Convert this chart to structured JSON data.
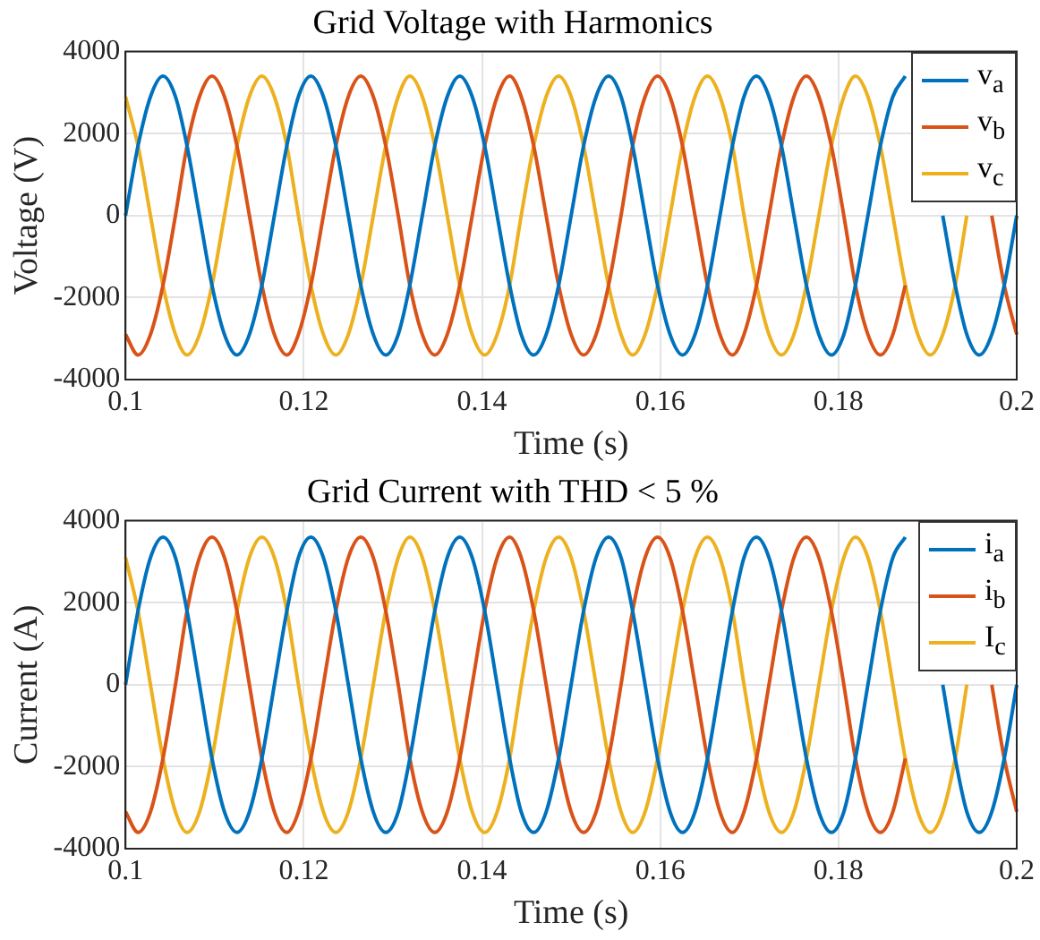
{
  "chart_data": [
    {
      "type": "line",
      "title": "Grid Voltage with Harmonics",
      "xlabel": "Time (s)",
      "ylabel": "Voltage (V)",
      "xlim": [
        0.1,
        0.2
      ],
      "xticks": [
        0.1,
        0.12,
        0.14,
        0.16,
        0.18,
        0.2
      ],
      "ylim": [
        -4000,
        4000
      ],
      "yticks": [
        -4000,
        -2000,
        0,
        2000,
        4000
      ],
      "grid": true,
      "legend": "top right",
      "marker": "none",
      "x": [
        0.1,
        0.1014,
        0.1028,
        0.1042,
        0.1056,
        0.1069,
        0.1083,
        0.1097,
        0.1111,
        0.1125,
        0.1139,
        0.1153,
        0.1167,
        0.1181,
        0.1194,
        0.1208,
        0.1222,
        0.1236,
        0.125,
        0.1264,
        0.1278,
        0.1292,
        0.1306,
        0.1319,
        0.1333,
        0.1347,
        0.1361,
        0.1375,
        0.1389,
        0.1403,
        0.1417,
        0.1431,
        0.1444,
        0.1458,
        0.1472,
        0.1486,
        0.15,
        0.1514,
        0.1528,
        0.1542,
        0.1556,
        0.1569,
        0.1583,
        0.1597,
        0.1611,
        0.1625,
        0.1639,
        0.1653,
        0.1667,
        0.1681,
        0.1694,
        0.1708,
        0.1722,
        0.1736,
        0.175,
        0.1764,
        0.1778,
        0.1792,
        0.1806,
        0.1819,
        0.1833,
        0.1847,
        0.1861,
        0.1875,
        0.1889,
        0.1903,
        0.1917,
        0.1931,
        0.1944,
        0.1958,
        0.1972,
        0.1986,
        0.2
      ],
      "series": [
        {
          "name": "v$_{a}$",
          "color": "#0072bd",
          "values": [
            0,
            1700,
            2900,
            3400,
            2900,
            1700,
            0,
            -1700,
            -2900,
            -3400,
            -2900,
            -1700,
            0,
            1700,
            2900,
            3400,
            2900,
            1700,
            0,
            -1700,
            -2900,
            -3400,
            -2900,
            -1700,
            0,
            1700,
            2900,
            3400,
            2900,
            1700,
            0,
            -1700,
            -2900,
            -3400,
            -2900,
            -1700,
            0,
            1700,
            2900,
            3400,
            2900,
            1700,
            0,
            -1700,
            -2900,
            -3400,
            -2900,
            -1700,
            0,
            1700,
            2900,
            3400,
            2900,
            1700,
            0,
            -1700,
            -2900,
            -3400,
            -2900,
            -1700,
            0,
            1700,
            2900,
            3400,
            null,
            null,
            0,
            -1700,
            -2900,
            -3400,
            -2900,
            -1700,
            0
          ]
        },
        {
          "name": "v$_{b}$",
          "color": "#d95319",
          "values": [
            -2900,
            -3400,
            -2900,
            -1700,
            0,
            1700,
            2900,
            3400,
            2900,
            1700,
            0,
            -1700,
            -2900,
            -3400,
            -2900,
            -1700,
            0,
            1700,
            2900,
            3400,
            2900,
            1700,
            0,
            -1700,
            -2900,
            -3400,
            -2900,
            -1700,
            0,
            1700,
            2900,
            3400,
            2900,
            1700,
            0,
            -1700,
            -2900,
            -3400,
            -2900,
            -1700,
            0,
            1700,
            2900,
            3400,
            2900,
            1700,
            0,
            -1700,
            -2900,
            -3400,
            -2900,
            -1700,
            0,
            1700,
            2900,
            3400,
            2900,
            1700,
            0,
            -1700,
            -2900,
            -3400,
            -2900,
            -1700,
            null,
            null,
            null,
            null,
            null,
            null,
            0,
            -1700,
            -2900
          ]
        },
        {
          "name": "v$_{c}$",
          "color": "#edb120",
          "values": [
            2900,
            1700,
            0,
            -1700,
            -2900,
            -3400,
            -2900,
            -1700,
            0,
            1700,
            2900,
            3400,
            2900,
            1700,
            0,
            -1700,
            -2900,
            -3400,
            -2900,
            -1700,
            0,
            1700,
            2900,
            3400,
            2900,
            1700,
            0,
            -1700,
            -2900,
            -3400,
            -2900,
            -1700,
            0,
            1700,
            2900,
            3400,
            2900,
            1700,
            0,
            -1700,
            -2900,
            -3400,
            -2900,
            -1700,
            0,
            1700,
            2900,
            3400,
            2900,
            1700,
            0,
            -1700,
            -2900,
            -3400,
            -2900,
            -1700,
            0,
            1700,
            2900,
            3400,
            2900,
            1700,
            0,
            -1700,
            -2900,
            -3400,
            -2900,
            -1700,
            0,
            null,
            null,
            null,
            null
          ]
        }
      ]
    },
    {
      "type": "line",
      "title": "Grid Current with THD < 5 %",
      "xlabel": "Time (s)",
      "ylabel": "Current (A)",
      "xlim": [
        0.1,
        0.2
      ],
      "xticks": [
        0.1,
        0.12,
        0.14,
        0.16,
        0.18,
        0.2
      ],
      "ylim": [
        -4000,
        4000
      ],
      "yticks": [
        -4000,
        -2000,
        0,
        2000,
        4000
      ],
      "grid": true,
      "legend": "top right",
      "marker": "none",
      "x": [
        0.1,
        0.1014,
        0.1028,
        0.1042,
        0.1056,
        0.1069,
        0.1083,
        0.1097,
        0.1111,
        0.1125,
        0.1139,
        0.1153,
        0.1167,
        0.1181,
        0.1194,
        0.1208,
        0.1222,
        0.1236,
        0.125,
        0.1264,
        0.1278,
        0.1292,
        0.1306,
        0.1319,
        0.1333,
        0.1347,
        0.1361,
        0.1375,
        0.1389,
        0.1403,
        0.1417,
        0.1431,
        0.1444,
        0.1458,
        0.1472,
        0.1486,
        0.15,
        0.1514,
        0.1528,
        0.1542,
        0.1556,
        0.1569,
        0.1583,
        0.1597,
        0.1611,
        0.1625,
        0.1639,
        0.1653,
        0.1667,
        0.1681,
        0.1694,
        0.1708,
        0.1722,
        0.1736,
        0.175,
        0.1764,
        0.1778,
        0.1792,
        0.1806,
        0.1819,
        0.1833,
        0.1847,
        0.1861,
        0.1875,
        0.1889,
        0.1903,
        0.1917,
        0.1931,
        0.1944,
        0.1958,
        0.1972,
        0.1986,
        0.2
      ],
      "series": [
        {
          "name": "i$_{a}$",
          "color": "#0072bd",
          "values": [
            0,
            1800,
            3100,
            3600,
            3100,
            1800,
            0,
            -1800,
            -3100,
            -3600,
            -3100,
            -1800,
            0,
            1800,
            3100,
            3600,
            3100,
            1800,
            0,
            -1800,
            -3100,
            -3600,
            -3100,
            -1800,
            0,
            1800,
            3100,
            3600,
            3100,
            1800,
            0,
            -1800,
            -3100,
            -3600,
            -3100,
            -1800,
            0,
            1800,
            3100,
            3600,
            3100,
            1800,
            0,
            -1800,
            -3100,
            -3600,
            -3100,
            -1800,
            0,
            1800,
            3100,
            3600,
            3100,
            1800,
            0,
            -1800,
            -3100,
            -3600,
            -3100,
            -1800,
            0,
            1800,
            3100,
            3600,
            null,
            null,
            0,
            -1800,
            -3100,
            -3600,
            -3100,
            -1800,
            0
          ]
        },
        {
          "name": "i$_{b}$",
          "color": "#d95319",
          "values": [
            -3100,
            -3600,
            -3100,
            -1800,
            0,
            1800,
            3100,
            3600,
            3100,
            1800,
            0,
            -1800,
            -3100,
            -3600,
            -3100,
            -1800,
            0,
            1800,
            3100,
            3600,
            3100,
            1800,
            0,
            -1800,
            -3100,
            -3600,
            -3100,
            -1800,
            0,
            1800,
            3100,
            3600,
            3100,
            1800,
            0,
            -1800,
            -3100,
            -3600,
            -3100,
            -1800,
            0,
            1800,
            3100,
            3600,
            3100,
            1800,
            0,
            -1800,
            -3100,
            -3600,
            -3100,
            -1800,
            0,
            1800,
            3100,
            3600,
            3100,
            1800,
            0,
            -1800,
            -3100,
            -3600,
            -3100,
            -1800,
            null,
            null,
            null,
            null,
            null,
            null,
            0,
            -1800,
            -3100
          ]
        },
        {
          "name": "I$_{c}$",
          "color": "#edb120",
          "values": [
            3100,
            1800,
            0,
            -1800,
            -3100,
            -3600,
            -3100,
            -1800,
            0,
            1800,
            3100,
            3600,
            3100,
            1800,
            0,
            -1800,
            -3100,
            -3600,
            -3100,
            -1800,
            0,
            1800,
            3100,
            3600,
            3100,
            1800,
            0,
            -1800,
            -3100,
            -3600,
            -3100,
            -1800,
            0,
            1800,
            3100,
            3600,
            3100,
            1800,
            0,
            -1800,
            -3100,
            -3600,
            -3100,
            -1800,
            0,
            1800,
            3100,
            3600,
            3100,
            1800,
            0,
            -1800,
            -3100,
            -3600,
            -3100,
            -1800,
            0,
            1800,
            3100,
            3600,
            3100,
            1800,
            0,
            -1800,
            -3100,
            -3600,
            -3100,
            -1800,
            0,
            null,
            null,
            null,
            null
          ]
        }
      ]
    }
  ]
}
